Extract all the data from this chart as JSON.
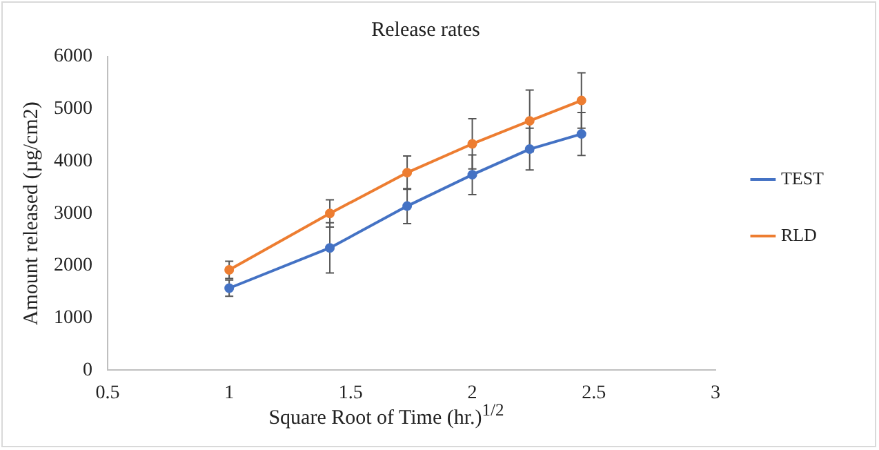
{
  "chart_data": {
    "type": "line",
    "title": "Release rates",
    "xlabel": "Square Root of Time (hr.)$^{1/2}$",
    "ylabel": "Amount released (µg/cm2)",
    "x": [
      1,
      1.414,
      1.732,
      2,
      2.236,
      2.449
    ],
    "series": [
      {
        "name": "TEST",
        "color": "#4472c4",
        "values": [
          1570,
          2340,
          3140,
          3740,
          4230,
          4520
        ],
        "errors": [
          155,
          480,
          335,
          380,
          400,
          410
        ]
      },
      {
        "name": "RLD",
        "color": "#ed7d31",
        "values": [
          1920,
          3000,
          3780,
          4330,
          4770,
          5160
        ],
        "errors": [
          165,
          260,
          320,
          480,
          590,
          530
        ]
      }
    ],
    "xlim": [
      0.5,
      3
    ],
    "xticks": [
      0.5,
      1,
      1.5,
      2,
      2.5,
      3
    ],
    "ylim": [
      0,
      6000
    ],
    "yticks": [
      0,
      1000,
      2000,
      3000,
      4000,
      5000,
      6000
    ],
    "grid": false,
    "legend": "right",
    "marker": "circle",
    "line_style": "solid"
  }
}
